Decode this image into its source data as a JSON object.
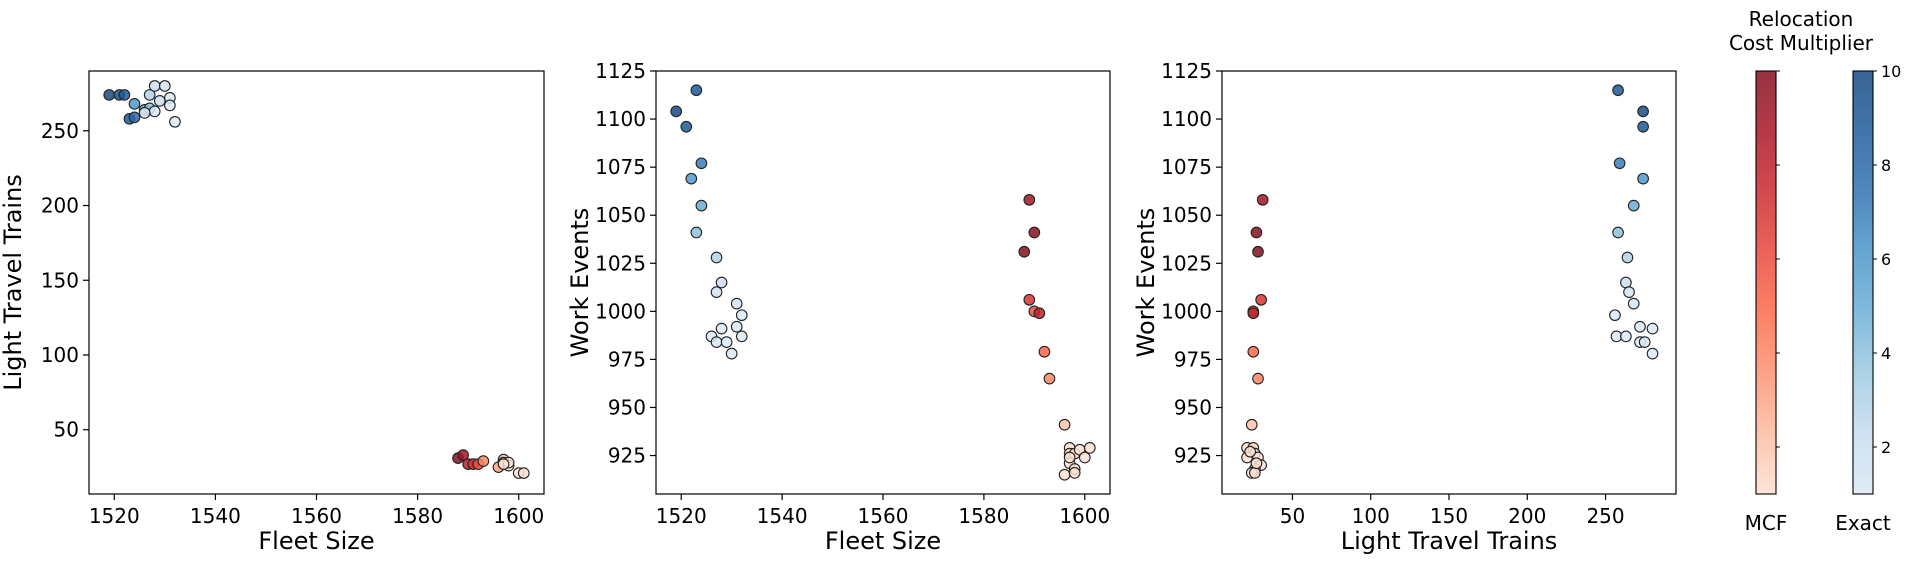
{
  "chart_data": [
    {
      "type": "scatter",
      "xlabel": "Fleet Size",
      "ylabel": "Light Travel Trains",
      "xlim": [
        1515,
        1605
      ],
      "ylim": [
        7,
        290
      ],
      "xticks": [
        1520,
        1540,
        1560,
        1580,
        1600
      ],
      "yticks": [
        50,
        100,
        150,
        200,
        250
      ],
      "grid": false,
      "series": [
        {
          "colormap": "Blues",
          "points": [
            {
              "x": 1519,
              "y": 274,
              "c": 10
            },
            {
              "x": 1521,
              "y": 274,
              "c": 9.5
            },
            {
              "x": 1522,
              "y": 274,
              "c": 9
            },
            {
              "x": 1523,
              "y": 258,
              "c": 9
            },
            {
              "x": 1524,
              "y": 259,
              "c": 8
            },
            {
              "x": 1524,
              "y": 268,
              "c": 6
            },
            {
              "x": 1526,
              "y": 264,
              "c": 5
            },
            {
              "x": 1527,
              "y": 265,
              "c": 4
            },
            {
              "x": 1527,
              "y": 274,
              "c": 3
            },
            {
              "x": 1528,
              "y": 280,
              "c": 2
            },
            {
              "x": 1529,
              "y": 270,
              "c": 2
            },
            {
              "x": 1530,
              "y": 280,
              "c": 1.5
            },
            {
              "x": 1531,
              "y": 272,
              "c": 1
            },
            {
              "x": 1531,
              "y": 267,
              "c": 1
            },
            {
              "x": 1532,
              "y": 256,
              "c": 1
            },
            {
              "x": 1528,
              "y": 263,
              "c": 1
            },
            {
              "x": 1526,
              "y": 262,
              "c": 1
            }
          ]
        },
        {
          "colormap": "Reds",
          "points": [
            {
              "x": 1588,
              "y": 31,
              "c": 10
            },
            {
              "x": 1589,
              "y": 33,
              "c": 9
            },
            {
              "x": 1590,
              "y": 27,
              "c": 8
            },
            {
              "x": 1591,
              "y": 27,
              "c": 7
            },
            {
              "x": 1592,
              "y": 27,
              "c": 6
            },
            {
              "x": 1593,
              "y": 29,
              "c": 4
            },
            {
              "x": 1596,
              "y": 25,
              "c": 3
            },
            {
              "x": 1597,
              "y": 30,
              "c": 2
            },
            {
              "x": 1597,
              "y": 28,
              "c": 1.5
            },
            {
              "x": 1598,
              "y": 26,
              "c": 1
            },
            {
              "x": 1598,
              "y": 28,
              "c": 1
            },
            {
              "x": 1600,
              "y": 21,
              "c": 1
            },
            {
              "x": 1601,
              "y": 21,
              "c": 1
            },
            {
              "x": 1597,
              "y": 27,
              "c": 1
            }
          ]
        }
      ]
    },
    {
      "type": "scatter",
      "xlabel": "Fleet Size",
      "ylabel": "Work Events",
      "xlim": [
        1515,
        1605
      ],
      "ylim": [
        905,
        1125
      ],
      "xticks": [
        1520,
        1540,
        1560,
        1580,
        1600
      ],
      "yticks": [
        925,
        950,
        975,
        1000,
        1025,
        1050,
        1075,
        1100,
        1125
      ],
      "grid": false,
      "series": [
        {
          "colormap": "Blues",
          "points": [
            {
              "x": 1519,
              "y": 1104,
              "c": 10
            },
            {
              "x": 1521,
              "y": 1096,
              "c": 9
            },
            {
              "x": 1523,
              "y": 1115,
              "c": 9
            },
            {
              "x": 1522,
              "y": 1069,
              "c": 6
            },
            {
              "x": 1524,
              "y": 1077,
              "c": 7
            },
            {
              "x": 1524,
              "y": 1055,
              "c": 5
            },
            {
              "x": 1523,
              "y": 1041,
              "c": 4
            },
            {
              "x": 1527,
              "y": 1028,
              "c": 3
            },
            {
              "x": 1528,
              "y": 1015,
              "c": 2
            },
            {
              "x": 1527,
              "y": 1010,
              "c": 1.5
            },
            {
              "x": 1531,
              "y": 1004,
              "c": 1.5
            },
            {
              "x": 1532,
              "y": 998,
              "c": 1
            },
            {
              "x": 1528,
              "y": 991,
              "c": 1
            },
            {
              "x": 1526,
              "y": 987,
              "c": 1
            },
            {
              "x": 1527,
              "y": 984,
              "c": 1
            },
            {
              "x": 1529,
              "y": 984,
              "c": 1
            },
            {
              "x": 1531,
              "y": 992,
              "c": 1
            },
            {
              "x": 1532,
              "y": 987,
              "c": 1
            },
            {
              "x": 1530,
              "y": 978,
              "c": 1
            }
          ]
        },
        {
          "colormap": "Reds",
          "points": [
            {
              "x": 1589,
              "y": 1058,
              "c": 9
            },
            {
              "x": 1590,
              "y": 1041,
              "c": 10
            },
            {
              "x": 1588,
              "y": 1031,
              "c": 10
            },
            {
              "x": 1589,
              "y": 1006,
              "c": 7
            },
            {
              "x": 1590,
              "y": 1000,
              "c": 6
            },
            {
              "x": 1591,
              "y": 999,
              "c": 8
            },
            {
              "x": 1592,
              "y": 979,
              "c": 5
            },
            {
              "x": 1593,
              "y": 965,
              "c": 4
            },
            {
              "x": 1596,
              "y": 941,
              "c": 2
            },
            {
              "x": 1597,
              "y": 929,
              "c": 1
            },
            {
              "x": 1597,
              "y": 926,
              "c": 1.5
            },
            {
              "x": 1598,
              "y": 926,
              "c": 1
            },
            {
              "x": 1599,
              "y": 928,
              "c": 1
            },
            {
              "x": 1601,
              "y": 929,
              "c": 1
            },
            {
              "x": 1600,
              "y": 924,
              "c": 1
            },
            {
              "x": 1597,
              "y": 921,
              "c": 1
            },
            {
              "x": 1598,
              "y": 918,
              "c": 1
            },
            {
              "x": 1596,
              "y": 915,
              "c": 1
            },
            {
              "x": 1598,
              "y": 916,
              "c": 1
            },
            {
              "x": 1597,
              "y": 924,
              "c": 1
            }
          ]
        }
      ]
    },
    {
      "type": "scatter",
      "xlabel": "Light Travel Trains",
      "ylabel": "Work Events",
      "xlim": [
        5,
        295
      ],
      "ylim": [
        905,
        1125
      ],
      "xticks": [
        50,
        100,
        150,
        200,
        250
      ],
      "yticks": [
        925,
        950,
        975,
        1000,
        1025,
        1050,
        1075,
        1100,
        1125
      ],
      "grid": false,
      "series": [
        {
          "colormap": "Blues",
          "points": [
            {
              "x": 258,
              "y": 1115,
              "c": 9
            },
            {
              "x": 274,
              "y": 1104,
              "c": 10
            },
            {
              "x": 274,
              "y": 1096,
              "c": 9
            },
            {
              "x": 259,
              "y": 1077,
              "c": 7
            },
            {
              "x": 274,
              "y": 1069,
              "c": 6
            },
            {
              "x": 268,
              "y": 1055,
              "c": 5
            },
            {
              "x": 258,
              "y": 1041,
              "c": 4
            },
            {
              "x": 264,
              "y": 1028,
              "c": 3
            },
            {
              "x": 263,
              "y": 1015,
              "c": 2
            },
            {
              "x": 265,
              "y": 1010,
              "c": 1.5
            },
            {
              "x": 268,
              "y": 1004,
              "c": 1.5
            },
            {
              "x": 256,
              "y": 998,
              "c": 1
            },
            {
              "x": 272,
              "y": 992,
              "c": 1
            },
            {
              "x": 280,
              "y": 991,
              "c": 1
            },
            {
              "x": 257,
              "y": 987,
              "c": 1
            },
            {
              "x": 263,
              "y": 987,
              "c": 1
            },
            {
              "x": 272,
              "y": 984,
              "c": 1
            },
            {
              "x": 275,
              "y": 984,
              "c": 1
            },
            {
              "x": 280,
              "y": 978,
              "c": 1
            }
          ]
        },
        {
          "colormap": "Reds",
          "points": [
            {
              "x": 31,
              "y": 1058,
              "c": 9
            },
            {
              "x": 27,
              "y": 1041,
              "c": 10
            },
            {
              "x": 28,
              "y": 1031,
              "c": 10
            },
            {
              "x": 30,
              "y": 1006,
              "c": 7
            },
            {
              "x": 25,
              "y": 1000,
              "c": 6
            },
            {
              "x": 25,
              "y": 999,
              "c": 8
            },
            {
              "x": 25,
              "y": 979,
              "c": 5
            },
            {
              "x": 28,
              "y": 965,
              "c": 4
            },
            {
              "x": 24,
              "y": 941,
              "c": 2
            },
            {
              "x": 21,
              "y": 929,
              "c": 1
            },
            {
              "x": 25,
              "y": 929,
              "c": 1.5
            },
            {
              "x": 26,
              "y": 926,
              "c": 1
            },
            {
              "x": 21,
              "y": 924,
              "c": 1
            },
            {
              "x": 28,
              "y": 924,
              "c": 1
            },
            {
              "x": 30,
              "y": 920,
              "c": 1
            },
            {
              "x": 26,
              "y": 918,
              "c": 1
            },
            {
              "x": 24,
              "y": 916,
              "c": 1
            },
            {
              "x": 26,
              "y": 916,
              "c": 1
            },
            {
              "x": 23,
              "y": 927,
              "c": 1
            },
            {
              "x": 27,
              "y": 921,
              "c": 1
            }
          ]
        }
      ]
    }
  ],
  "colorbar": {
    "title_line1": "Relocation",
    "title_line2": "Cost Multiplier",
    "range": [
      1,
      10
    ],
    "ticks": [
      2,
      4,
      6,
      8,
      10
    ],
    "tick_labels": [
      "2",
      "4",
      "6",
      "8",
      "10"
    ],
    "bars": [
      {
        "label": "MCF",
        "colormap": "Reds"
      },
      {
        "label": "Exact",
        "colormap": "Blues"
      }
    ]
  },
  "colormaps": {
    "Reds": [
      "#fde0d2",
      "#fcbba1",
      "#fc9272",
      "#fb6a4a",
      "#e8473d",
      "#cb2a2e",
      "#a91628",
      "#841020"
    ],
    "Blues": [
      "#dbe9f6",
      "#c6dbef",
      "#9ecae1",
      "#6baed6",
      "#4b96c9",
      "#3272b0",
      "#215d9b",
      "#174a82"
    ]
  }
}
